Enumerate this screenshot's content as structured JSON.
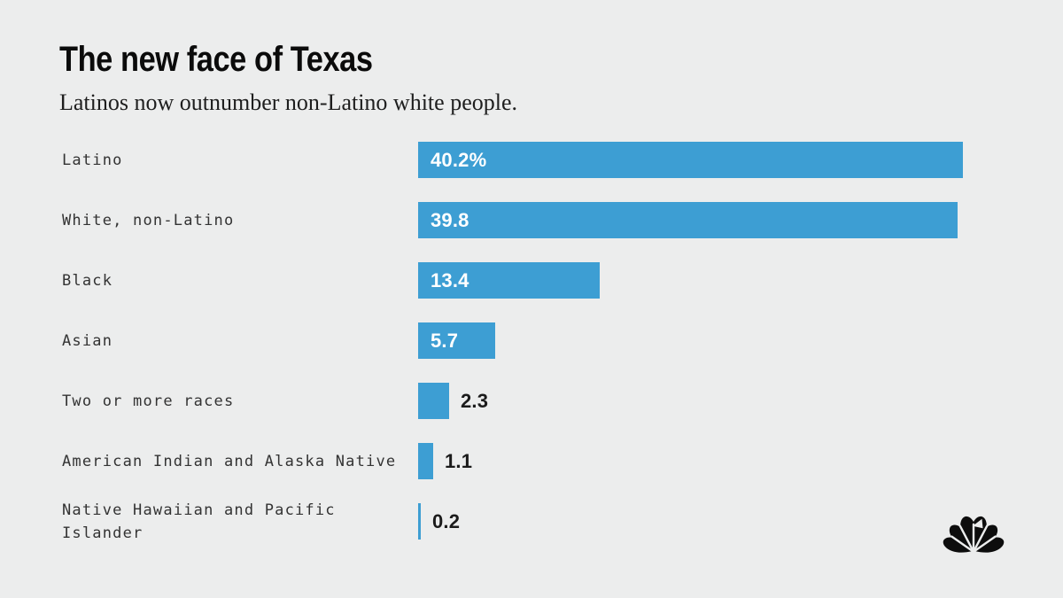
{
  "header": {
    "title": "The new face of Texas",
    "subtitle": "Latinos now outnumber non-Latino white people."
  },
  "chart_data": {
    "type": "bar",
    "orientation": "horizontal",
    "title": "The new face of Texas",
    "subtitle": "Latinos now outnumber non-Latino white people.",
    "unit": "percent",
    "categories": [
      "Latino",
      "White, non-Latino",
      "Black",
      "Asian",
      "Two or more races",
      "American Indian and Alaska Native",
      "Native Hawaiian and Pacific Islander"
    ],
    "values": [
      40.2,
      39.8,
      13.4,
      5.7,
      2.3,
      1.1,
      0.2
    ],
    "value_labels": [
      "40.2%",
      "39.8",
      "13.4",
      "5.7",
      "2.3",
      "1.1",
      "0.2"
    ],
    "xlim": [
      0,
      40.2
    ],
    "grid": false,
    "legend": false,
    "bar_color": "#3D9ED3"
  },
  "branding": {
    "logo_icon": "nbc-peacock-icon"
  },
  "colors": {
    "background": "#ECEDED",
    "bar": "#3D9ED3",
    "title_text": "#0B0B0B",
    "subtitle_text": "#1E1E1E",
    "category_text": "#333333",
    "value_inside": "#FFFFFF",
    "value_outside": "#1B1B1B",
    "logo": "#0D0D0D"
  }
}
